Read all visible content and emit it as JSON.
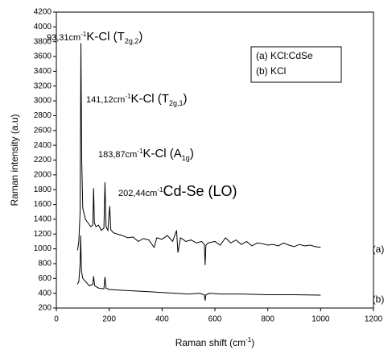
{
  "chart_data": {
    "type": "line",
    "x_label": {
      "text": "Raman shift (cm",
      "sup": "-1",
      "end": ")"
    },
    "y_label": "Raman intensity (a.u)",
    "xlim": [
      0,
      1200
    ],
    "xticks": [
      0,
      200,
      400,
      600,
      800,
      1000,
      1200
    ],
    "ylim": [
      200,
      4200
    ],
    "yticks": [
      200,
      400,
      600,
      800,
      1000,
      1200,
      1400,
      1600,
      1800,
      2000,
      2200,
      2400,
      2600,
      2800,
      3000,
      3200,
      3400,
      3600,
      3800,
      4000,
      4200
    ],
    "legend_position": "upper right",
    "series": [
      {
        "name": "(a) KCl:CdSe",
        "curve_label": "(a)",
        "color": "#000000",
        "x": [
          80,
          85,
          90,
          93,
          96,
          100,
          110,
          120,
          130,
          138,
          141,
          144,
          150,
          160,
          170,
          180,
          184,
          188,
          195,
          202,
          206,
          215,
          230,
          250,
          270,
          290,
          310,
          330,
          350,
          370,
          380,
          400,
          420,
          440,
          455,
          460,
          470,
          490,
          510,
          530,
          550,
          560,
          563,
          566,
          575,
          600,
          620,
          640,
          660,
          680,
          700,
          720,
          740,
          760,
          780,
          800,
          820,
          840,
          860,
          880,
          900,
          920,
          940,
          960,
          980,
          1000
        ],
        "values": [
          980,
          1100,
          1500,
          3780,
          2200,
          1550,
          1400,
          1350,
          1300,
          1320,
          1820,
          1350,
          1300,
          1320,
          1250,
          1280,
          1900,
          1300,
          1250,
          1580,
          1260,
          1220,
          1200,
          1180,
          1150,
          1160,
          1100,
          1140,
          1120,
          1020,
          1150,
          1130,
          1180,
          1100,
          1250,
          950,
          1150,
          1100,
          1120,
          1080,
          1100,
          1060,
          780,
          1050,
          1080,
          1100,
          1050,
          1150,
          1080,
          1120,
          1060,
          1100,
          1040,
          1080,
          1070,
          1050,
          1060,
          1040,
          1080,
          1050,
          1030,
          1060,
          1040,
          1050,
          1030,
          1020
        ]
      },
      {
        "name": "(b) KCl",
        "curve_label": "(b)",
        "color": "#000000",
        "x": [
          80,
          85,
          90,
          92,
          95,
          100,
          110,
          125,
          138,
          141,
          145,
          160,
          180,
          184,
          188,
          200,
          250,
          300,
          350,
          400,
          450,
          500,
          540,
          560,
          563,
          566,
          580,
          620,
          700,
          800,
          900,
          1000
        ],
        "values": [
          520,
          560,
          800,
          1180,
          700,
          600,
          560,
          500,
          520,
          630,
          500,
          470,
          460,
          620,
          470,
          450,
          440,
          430,
          420,
          410,
          400,
          390,
          400,
          380,
          300,
          380,
          400,
          390,
          390,
          380,
          380,
          375
        ]
      }
    ],
    "annotations": [
      {
        "wavenumber": "93,31",
        "unit": "cm",
        "unit_sup": "-1",
        "label": "K-Cl (T",
        "label_sub": "2g,2",
        "label_end": ")"
      },
      {
        "wavenumber": "141,12",
        "unit": "cm",
        "unit_sup": "-1",
        "label": "K-Cl (T",
        "label_sub": "2g,1",
        "label_end": ")"
      },
      {
        "wavenumber": "183,87",
        "unit": "cm",
        "unit_sup": "-1",
        "label": "K-Cl (A",
        "label_sub": "1g",
        "label_end": ")"
      },
      {
        "wavenumber": "202,44",
        "unit": "cm",
        "unit_sup": "-1",
        "label": "Cd-Se (LO)"
      }
    ]
  }
}
